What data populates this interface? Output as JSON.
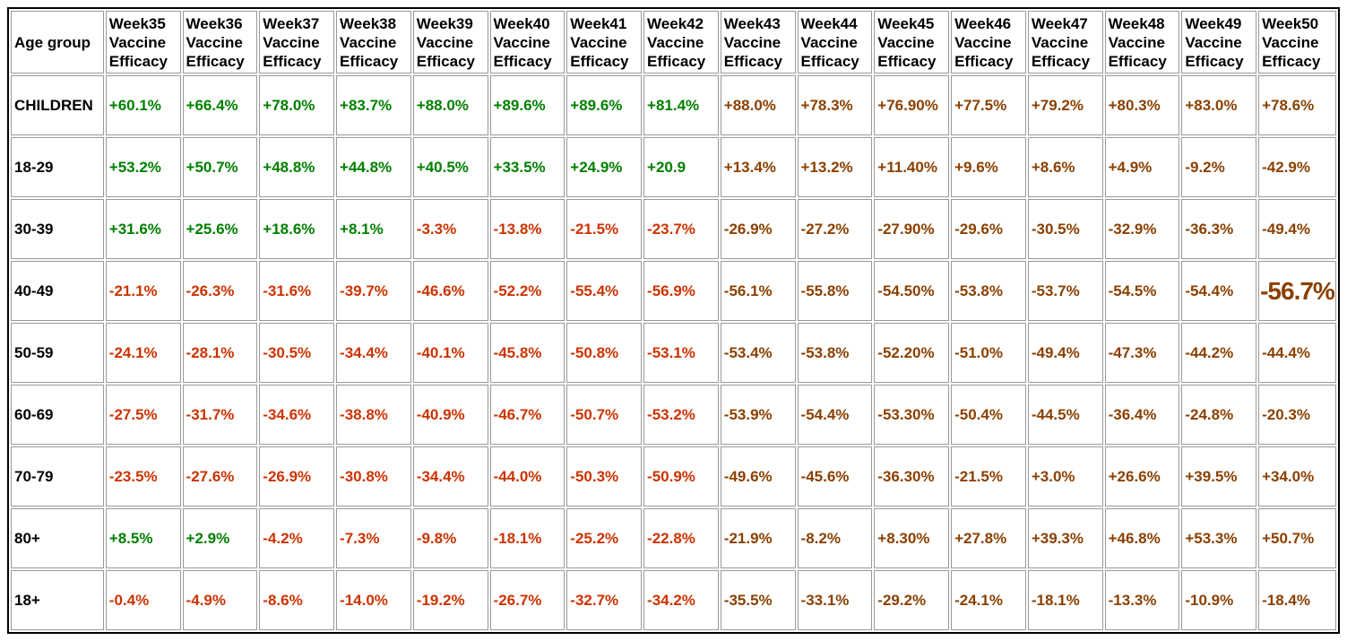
{
  "chart_data": {
    "type": "table",
    "corner_header": "Age group",
    "weeks": [
      "Week35",
      "Week36",
      "Week37",
      "Week38",
      "Week39",
      "Week40",
      "Week41",
      "Week42",
      "Week43",
      "Week44",
      "Week45",
      "Week46",
      "Week47",
      "Week48",
      "Week49",
      "Week50"
    ],
    "header_sub_lines": [
      "Vaccine",
      "Efficacy"
    ],
    "rows": [
      {
        "age_group": "CHILDREN",
        "values": [
          "+60.1%",
          "+66.4%",
          "+78.0%",
          "+83.7%",
          "+88.0%",
          "+89.6%",
          "+89.6%",
          "+81.4%",
          "+88.0%",
          "+78.3%",
          "+76.90%",
          "+77.5%",
          "+79.2%",
          "+80.3%",
          "+83.0%",
          "+78.6%"
        ],
        "colors": [
          "green",
          "green",
          "green",
          "green",
          "green",
          "green",
          "green",
          "green",
          "brown",
          "brown",
          "brown",
          "brown",
          "brown",
          "brown",
          "brown",
          "brown"
        ]
      },
      {
        "age_group": "18-29",
        "values": [
          "+53.2%",
          "+50.7%",
          "+48.8%",
          "+44.8%",
          "+40.5%",
          "+33.5%",
          "+24.9%",
          "+20.9",
          "+13.4%",
          "+13.2%",
          "+11.40%",
          "+9.6%",
          "+8.6%",
          "+4.9%",
          "-9.2%",
          "-42.9%"
        ],
        "colors": [
          "green",
          "green",
          "green",
          "green",
          "green",
          "green",
          "green",
          "green",
          "brown",
          "brown",
          "brown",
          "brown",
          "brown",
          "brown",
          "brown",
          "brown"
        ]
      },
      {
        "age_group": "30-39",
        "values": [
          "+31.6%",
          "+25.6%",
          "+18.6%",
          "+8.1%",
          "-3.3%",
          "-13.8%",
          "-21.5%",
          "-23.7%",
          "-26.9%",
          "-27.2%",
          "-27.90%",
          "-29.6%",
          "-30.5%",
          "-32.9%",
          "-36.3%",
          "-49.4%"
        ],
        "colors": [
          "green",
          "green",
          "green",
          "green",
          "red",
          "red",
          "red",
          "red",
          "brown",
          "brown",
          "brown",
          "brown",
          "brown",
          "brown",
          "brown",
          "brown"
        ]
      },
      {
        "age_group": "40-49",
        "values": [
          "-21.1%",
          "-26.3%",
          "-31.6%",
          "-39.7%",
          "-46.6%",
          "-52.2%",
          "-55.4%",
          "-56.9%",
          "-56.1%",
          "-55.8%",
          "-54.50%",
          "-53.8%",
          "-53.7%",
          "-54.5%",
          "-54.4%",
          "-56.7%"
        ],
        "colors": [
          "red",
          "red",
          "red",
          "red",
          "red",
          "red",
          "red",
          "red",
          "brown",
          "brown",
          "brown",
          "brown",
          "brown",
          "brown",
          "brown",
          "brown"
        ]
      },
      {
        "age_group": "50-59",
        "values": [
          "-24.1%",
          "-28.1%",
          "-30.5%",
          "-34.4%",
          "-40.1%",
          "-45.8%",
          "-50.8%",
          "-53.1%",
          "-53.4%",
          "-53.8%",
          "-52.20%",
          "-51.0%",
          "-49.4%",
          "-47.3%",
          "-44.2%",
          "-44.4%"
        ],
        "colors": [
          "red",
          "red",
          "red",
          "red",
          "red",
          "red",
          "red",
          "red",
          "brown",
          "brown",
          "brown",
          "brown",
          "brown",
          "brown",
          "brown",
          "brown"
        ]
      },
      {
        "age_group": "60-69",
        "values": [
          "-27.5%",
          "-31.7%",
          "-34.6%",
          "-38.8%",
          "-40.9%",
          "-46.7%",
          "-50.7%",
          "-53.2%",
          "-53.9%",
          "-54.4%",
          "-53.30%",
          "-50.4%",
          "-44.5%",
          "-36.4%",
          "-24.8%",
          "-20.3%"
        ],
        "colors": [
          "red",
          "red",
          "red",
          "red",
          "red",
          "red",
          "red",
          "red",
          "brown",
          "brown",
          "brown",
          "brown",
          "brown",
          "brown",
          "brown",
          "brown"
        ]
      },
      {
        "age_group": "70-79",
        "values": [
          "-23.5%",
          "-27.6%",
          "-26.9%",
          "-30.8%",
          "-34.4%",
          "-44.0%",
          "-50.3%",
          "-50.9%",
          "-49.6%",
          "-45.6%",
          "-36.30%",
          "-21.5%",
          "+3.0%",
          "+26.6%",
          "+39.5%",
          "+34.0%"
        ],
        "colors": [
          "red",
          "red",
          "red",
          "red",
          "red",
          "red",
          "red",
          "red",
          "brown",
          "brown",
          "brown",
          "brown",
          "brown",
          "brown",
          "brown",
          "brown"
        ]
      },
      {
        "age_group": "80+",
        "values": [
          "+8.5%",
          "+2.9%",
          "-4.2%",
          "-7.3%",
          "-9.8%",
          "-18.1%",
          "-25.2%",
          "-22.8%",
          "-21.9%",
          "-8.2%",
          "+8.30%",
          "+27.8%",
          "+39.3%",
          "+46.8%",
          "+53.3%",
          "+50.7%"
        ],
        "colors": [
          "green",
          "green",
          "red",
          "red",
          "red",
          "red",
          "red",
          "red",
          "brown",
          "brown",
          "brown",
          "brown",
          "brown",
          "brown",
          "brown",
          "brown"
        ]
      },
      {
        "age_group": "18+",
        "values": [
          "-0.4%",
          "-4.9%",
          "-8.6%",
          "-14.0%",
          "-19.2%",
          "-26.7%",
          "-32.7%",
          "-34.2%",
          "-35.5%",
          "-33.1%",
          "-29.2%",
          "-24.1%",
          "-18.1%",
          "-13.3%",
          "-10.9%",
          "-18.4%"
        ],
        "colors": [
          "red",
          "red",
          "red",
          "red",
          "red",
          "red",
          "red",
          "red",
          "brown",
          "brown",
          "brown",
          "brown",
          "brown",
          "brown",
          "brown",
          "brown"
        ]
      }
    ],
    "emphasized_cell": {
      "age_group": "40-49",
      "week": "Week50",
      "value": "-56.7%"
    },
    "palette": {
      "positive_green": "#008000",
      "negative_red": "#cc3300",
      "late_week_brown": "#8b4000",
      "header_text": "#000000",
      "cell_border": "#999999",
      "outer_border": "#000000",
      "background": "#ffffff"
    }
  }
}
